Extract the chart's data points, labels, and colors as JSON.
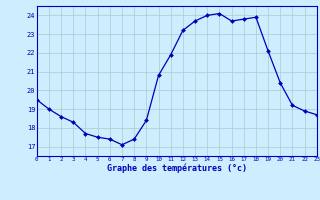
{
  "hours": [
    0,
    1,
    2,
    3,
    4,
    5,
    6,
    7,
    8,
    9,
    10,
    11,
    12,
    13,
    14,
    15,
    16,
    17,
    18,
    19,
    20,
    21,
    22,
    23
  ],
  "temps": [
    19.5,
    19.0,
    18.6,
    18.3,
    17.7,
    17.5,
    17.4,
    17.1,
    17.4,
    18.4,
    20.8,
    21.9,
    23.2,
    23.7,
    24.0,
    24.1,
    23.7,
    23.8,
    23.9,
    22.1,
    20.4,
    19.2,
    18.9,
    18.7
  ],
  "line_color": "#0000bb",
  "marker": "D",
  "marker_size": 2.0,
  "bg_color": "#cceeff",
  "grid_color": "#aacccc",
  "xlabel": "Graphe des températures (°c)",
  "xlabel_color": "#0000bb",
  "tick_color": "#0000bb",
  "ylim": [
    16.5,
    24.5
  ],
  "yticks": [
    17,
    18,
    19,
    20,
    21,
    22,
    23,
    24
  ],
  "xlim": [
    0,
    23
  ],
  "spine_color": "#0000bb"
}
